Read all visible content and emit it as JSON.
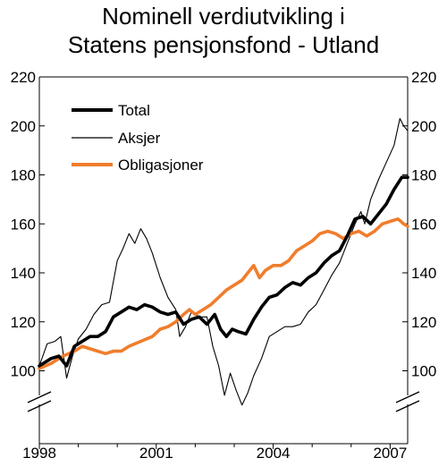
{
  "chart_data": {
    "type": "line",
    "title_line1": "Nominell verdiutvikling i",
    "title_line2": "Statens pensjonsfond - Utland",
    "xlabel": "",
    "ylabel": "",
    "xlim": [
      1998.0,
      2007.45
    ],
    "ylim": [
      100,
      220
    ],
    "axis_break": true,
    "y_ticks": [
      100,
      120,
      140,
      160,
      180,
      200,
      220
    ],
    "x_ticks": [
      1998,
      2001,
      2004,
      2007
    ],
    "x_tick_labels": [
      "1998",
      "2001",
      "2004",
      "2007"
    ],
    "y_tick_labels": [
      "100",
      "120",
      "140",
      "160",
      "180",
      "200",
      "220"
    ],
    "legend_position": "top-left",
    "grid": false,
    "series": [
      {
        "name": "Total",
        "color": "#000000",
        "style": "thick",
        "points": [
          [
            1998.0,
            102
          ],
          [
            1998.3,
            105
          ],
          [
            1998.5,
            106
          ],
          [
            1998.7,
            102
          ],
          [
            1998.9,
            110
          ],
          [
            1999.1,
            112
          ],
          [
            1999.3,
            114
          ],
          [
            1999.5,
            114
          ],
          [
            1999.7,
            116
          ],
          [
            1999.9,
            122
          ],
          [
            2000.1,
            124
          ],
          [
            2000.3,
            126
          ],
          [
            2000.5,
            125
          ],
          [
            2000.7,
            127
          ],
          [
            2000.9,
            126
          ],
          [
            2001.1,
            124
          ],
          [
            2001.3,
            123
          ],
          [
            2001.5,
            124
          ],
          [
            2001.7,
            119
          ],
          [
            2001.9,
            121
          ],
          [
            2002.1,
            122
          ],
          [
            2002.3,
            119
          ],
          [
            2002.5,
            123
          ],
          [
            2002.65,
            117
          ],
          [
            2002.8,
            114
          ],
          [
            2002.95,
            117
          ],
          [
            2003.1,
            116
          ],
          [
            2003.3,
            115
          ],
          [
            2003.5,
            121
          ],
          [
            2003.7,
            126
          ],
          [
            2003.9,
            130
          ],
          [
            2004.1,
            131
          ],
          [
            2004.3,
            134
          ],
          [
            2004.5,
            136
          ],
          [
            2004.7,
            135
          ],
          [
            2004.9,
            138
          ],
          [
            2005.1,
            140
          ],
          [
            2005.3,
            144
          ],
          [
            2005.5,
            147
          ],
          [
            2005.7,
            149
          ],
          [
            2005.9,
            155
          ],
          [
            2006.1,
            162
          ],
          [
            2006.3,
            163
          ],
          [
            2006.5,
            160
          ],
          [
            2006.7,
            164
          ],
          [
            2006.9,
            168
          ],
          [
            2007.1,
            174
          ],
          [
            2007.3,
            179
          ],
          [
            2007.45,
            179
          ]
        ]
      },
      {
        "name": "Aksjer",
        "color": "#000000",
        "style": "thin",
        "points": [
          [
            1998.0,
            102
          ],
          [
            1998.2,
            111
          ],
          [
            1998.4,
            112
          ],
          [
            1998.55,
            114
          ],
          [
            1998.7,
            97
          ],
          [
            1998.85,
            106
          ],
          [
            1999.0,
            113
          ],
          [
            1999.2,
            117
          ],
          [
            1999.4,
            123
          ],
          [
            1999.6,
            127
          ],
          [
            1999.8,
            128
          ],
          [
            2000.0,
            145
          ],
          [
            2000.15,
            150
          ],
          [
            2000.3,
            156
          ],
          [
            2000.45,
            152
          ],
          [
            2000.6,
            158
          ],
          [
            2000.75,
            154
          ],
          [
            2000.9,
            148
          ],
          [
            2001.1,
            138
          ],
          [
            2001.3,
            130
          ],
          [
            2001.5,
            125
          ],
          [
            2001.6,
            114
          ],
          [
            2001.75,
            118
          ],
          [
            2001.9,
            124
          ],
          [
            2002.1,
            122
          ],
          [
            2002.3,
            122
          ],
          [
            2002.45,
            110
          ],
          [
            2002.6,
            102
          ],
          [
            2002.75,
            90
          ],
          [
            2002.9,
            99
          ],
          [
            2003.05,
            92
          ],
          [
            2003.2,
            86
          ],
          [
            2003.35,
            91
          ],
          [
            2003.5,
            98
          ],
          [
            2003.7,
            105
          ],
          [
            2003.9,
            114
          ],
          [
            2004.1,
            116
          ],
          [
            2004.3,
            118
          ],
          [
            2004.5,
            118
          ],
          [
            2004.7,
            119
          ],
          [
            2004.9,
            124
          ],
          [
            2005.1,
            127
          ],
          [
            2005.3,
            133
          ],
          [
            2005.5,
            139
          ],
          [
            2005.7,
            144
          ],
          [
            2005.9,
            152
          ],
          [
            2006.1,
            160
          ],
          [
            2006.25,
            165
          ],
          [
            2006.35,
            160
          ],
          [
            2006.5,
            170
          ],
          [
            2006.7,
            178
          ],
          [
            2006.9,
            185
          ],
          [
            2007.1,
            192
          ],
          [
            2007.25,
            203
          ],
          [
            2007.35,
            200
          ],
          [
            2007.45,
            198
          ]
        ]
      },
      {
        "name": "Obligasjoner",
        "color": "#f07d2c",
        "style": "thick",
        "points": [
          [
            1998.0,
            101
          ],
          [
            1998.3,
            103
          ],
          [
            1998.6,
            106
          ],
          [
            1998.9,
            108
          ],
          [
            1999.1,
            110
          ],
          [
            1999.3,
            109
          ],
          [
            1999.5,
            108
          ],
          [
            1999.7,
            107
          ],
          [
            1999.9,
            108
          ],
          [
            2000.1,
            108
          ],
          [
            2000.3,
            110
          ],
          [
            2000.6,
            112
          ],
          [
            2000.9,
            114
          ],
          [
            2001.1,
            117
          ],
          [
            2001.3,
            118
          ],
          [
            2001.5,
            120
          ],
          [
            2001.7,
            123
          ],
          [
            2001.85,
            125
          ],
          [
            2002.0,
            123
          ],
          [
            2002.2,
            125
          ],
          [
            2002.4,
            127
          ],
          [
            2002.6,
            130
          ],
          [
            2002.8,
            133
          ],
          [
            2003.0,
            135
          ],
          [
            2003.2,
            137
          ],
          [
            2003.4,
            141
          ],
          [
            2003.5,
            143
          ],
          [
            2003.65,
            138
          ],
          [
            2003.8,
            141
          ],
          [
            2004.0,
            143
          ],
          [
            2004.2,
            143
          ],
          [
            2004.4,
            145
          ],
          [
            2004.6,
            149
          ],
          [
            2004.8,
            151
          ],
          [
            2005.0,
            153
          ],
          [
            2005.2,
            156
          ],
          [
            2005.4,
            157
          ],
          [
            2005.6,
            156
          ],
          [
            2005.8,
            154
          ],
          [
            2006.0,
            156
          ],
          [
            2006.2,
            157
          ],
          [
            2006.4,
            155
          ],
          [
            2006.6,
            157
          ],
          [
            2006.8,
            160
          ],
          [
            2007.0,
            161
          ],
          [
            2007.2,
            162
          ],
          [
            2007.35,
            160
          ],
          [
            2007.45,
            159
          ]
        ]
      }
    ]
  }
}
